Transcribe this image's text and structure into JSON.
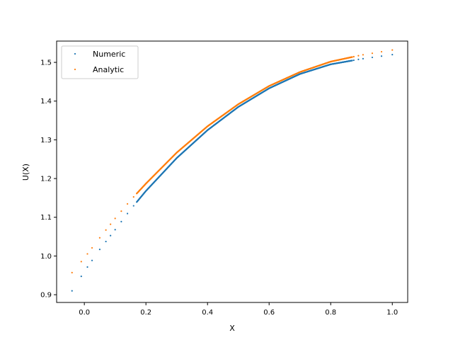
{
  "chart_data": {
    "type": "scatter",
    "xlabel": "X",
    "ylabel": "U(X)",
    "xlim": [
      -0.09,
      1.05
    ],
    "ylim": [
      0.88,
      1.555
    ],
    "x_ticks": [
      0.0,
      0.2,
      0.4,
      0.6,
      0.8,
      1.0
    ],
    "y_ticks": [
      0.9,
      1.0,
      1.1,
      1.2,
      1.3,
      1.4,
      1.5
    ],
    "x_tick_labels": [
      "0.0",
      "0.2",
      "0.4",
      "0.6",
      "0.8",
      "1.0"
    ],
    "y_tick_labels": [
      "0.9",
      "1.0",
      "1.1",
      "1.2",
      "1.3",
      "1.4",
      "1.5"
    ],
    "legend_position": "top-left",
    "grid": false,
    "sparse_x": [
      -0.04,
      -0.01,
      0.01,
      0.025,
      0.05,
      0.07,
      0.085,
      0.1,
      0.12,
      0.14,
      0.16,
      0.875,
      0.89,
      0.905,
      0.935,
      0.965,
      1.0
    ],
    "dense_x_range": [
      0.17,
      0.87
    ],
    "series": [
      {
        "name": "Numeric",
        "color": "#1f77b4",
        "curve": [
          [
            -0.04,
            0.91
          ],
          [
            0.0,
            0.96
          ],
          [
            0.05,
            1.017
          ],
          [
            0.1,
            1.068
          ],
          [
            0.15,
            1.12
          ],
          [
            0.2,
            1.168
          ],
          [
            0.3,
            1.253
          ],
          [
            0.4,
            1.325
          ],
          [
            0.5,
            1.385
          ],
          [
            0.6,
            1.433
          ],
          [
            0.7,
            1.47
          ],
          [
            0.8,
            1.495
          ],
          [
            0.9,
            1.509
          ],
          [
            1.0,
            1.52
          ]
        ]
      },
      {
        "name": "Analytic",
        "color": "#ff7f0e",
        "curve": [
          [
            -0.04,
            0.957
          ],
          [
            0.0,
            0.995
          ],
          [
            0.05,
            1.047
          ],
          [
            0.1,
            1.097
          ],
          [
            0.15,
            1.144
          ],
          [
            0.2,
            1.187
          ],
          [
            0.3,
            1.267
          ],
          [
            0.4,
            1.335
          ],
          [
            0.5,
            1.392
          ],
          [
            0.6,
            1.439
          ],
          [
            0.7,
            1.475
          ],
          [
            0.8,
            1.502
          ],
          [
            0.9,
            1.519
          ],
          [
            1.0,
            1.532
          ]
        ]
      }
    ]
  }
}
